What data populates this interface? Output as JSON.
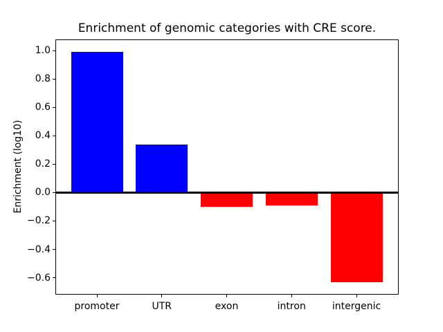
{
  "chart_data": {
    "type": "bar",
    "title": "Enrichment of genomic categories with CRE score.",
    "xlabel": "",
    "ylabel": "Enrichment (log10)",
    "categories": [
      "promoter",
      "UTR",
      "exon",
      "intron",
      "intergenic"
    ],
    "values": [
      0.99,
      0.34,
      -0.1,
      -0.09,
      -0.63
    ],
    "bar_colors": [
      "#0000ff",
      "#0000ff",
      "#ff0000",
      "#ff0000",
      "#ff0000"
    ],
    "positive_color": "#0000ff",
    "negative_color": "#ff0000",
    "bar_width": 0.8,
    "xlim": [
      -0.64,
      4.64
    ],
    "ylim": [
      -0.714,
      1.078
    ],
    "yticks": [
      1.0,
      0.8,
      0.6,
      0.4,
      0.2,
      0.0,
      -0.2,
      -0.4,
      -0.6
    ],
    "ytick_labels": [
      "1.0",
      "0.8",
      "0.6",
      "0.4",
      "0.2",
      "0.0",
      "−0.2",
      "−0.4",
      "−0.6"
    ],
    "zero_line": true,
    "grid": false,
    "legend": false,
    "axis_color": "#000000",
    "background": "#ffffff"
  }
}
